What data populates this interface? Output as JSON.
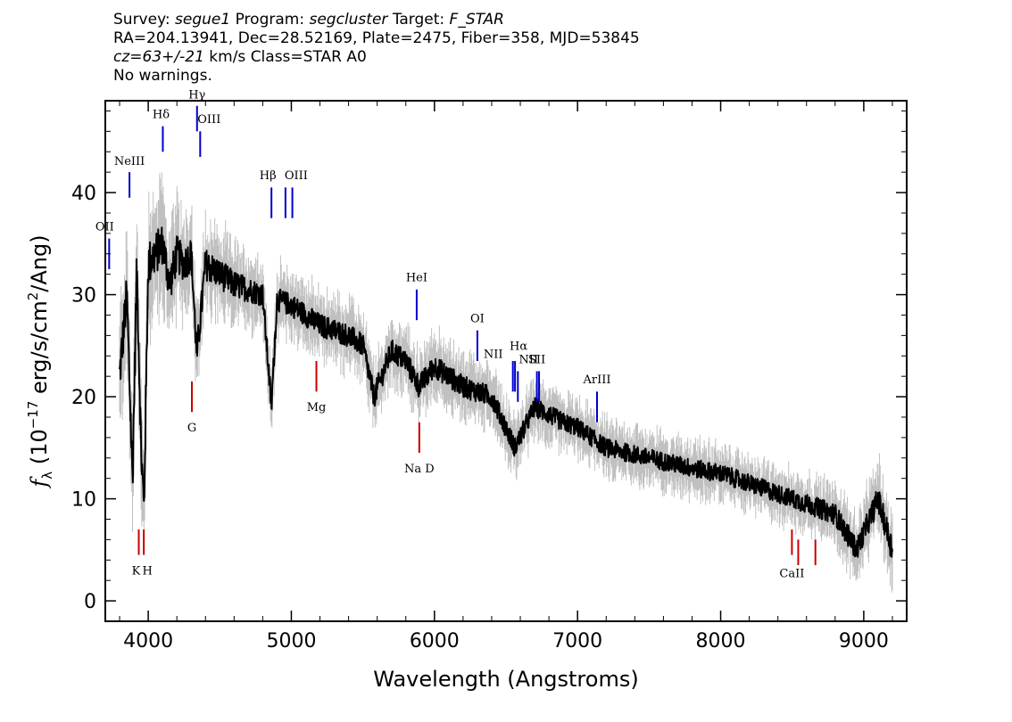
{
  "header": {
    "survey_label": "Survey:",
    "survey": "segue1",
    "program_label": "Program:",
    "program": "segcluster",
    "target_label": "Target:",
    "target": "F_STAR",
    "line2": "RA=204.13941, Dec=28.52169, Plate=2475, Fiber=358, MJD=53845",
    "cz": "cz=63+/-21",
    "cz_rest": " km/s Class=STAR A0",
    "line4": "No warnings."
  },
  "chart_data": {
    "type": "line",
    "title": "",
    "xlabel": "Wavelength (Angstroms)",
    "ylabel_main": "f",
    "ylabel_sub": "λ",
    "ylabel_rest": " (10",
    "ylabel_exp1": "−17",
    "ylabel_mid": " erg/s/cm",
    "ylabel_exp2": "2",
    "ylabel_end": "/Ang)",
    "xlim": [
      3700,
      9300
    ],
    "ylim": [
      -2,
      49
    ],
    "xticks": [
      4000,
      5000,
      6000,
      7000,
      8000,
      9000
    ],
    "xtick_labels": [
      "4000",
      "5000",
      "6000",
      "7000",
      "8000",
      "9000"
    ],
    "yticks": [
      0,
      10,
      20,
      30,
      40
    ],
    "ytick_labels": [
      "0",
      "10",
      "20",
      "30",
      "40"
    ],
    "grid": false,
    "series": [
      {
        "role": "flux",
        "color": "#000000",
        "x": [
          3800,
          3850,
          3890,
          3920,
          3950,
          3970,
          4000,
          4050,
          4100,
          4150,
          4200,
          4250,
          4300,
          4340,
          4400,
          4500,
          4600,
          4700,
          4800,
          4861,
          4900,
          5000,
          5100,
          5200,
          5300,
          5400,
          5500,
          5577,
          5700,
          5800,
          5893,
          6000,
          6200,
          6400,
          6563,
          6700,
          6900,
          7000,
          7200,
          7500,
          7800,
          8000,
          8200,
          8400,
          8600,
          8800,
          8950,
          9100,
          9200
        ],
        "y": [
          22,
          30,
          12,
          33,
          15,
          9,
          33,
          34,
          35,
          31,
          34,
          33,
          34,
          24,
          33,
          32,
          31,
          30.5,
          30,
          19,
          29.5,
          29,
          28,
          27,
          26.5,
          26,
          25,
          20,
          24.5,
          23.5,
          21,
          23,
          21,
          20,
          15,
          19,
          17.5,
          17,
          15,
          14,
          13,
          12.5,
          11.5,
          10.5,
          9.5,
          8.5,
          5,
          10,
          5
        ]
      },
      {
        "role": "error",
        "color": "#c0c0c0",
        "x": [
          3800,
          4000,
          4200,
          4400,
          4600,
          4800,
          5000,
          5200,
          5400,
          5600,
          5800,
          6000,
          6500,
          7000,
          7500,
          8000,
          8500,
          9000,
          9200
        ],
        "y": [
          5,
          5,
          4,
          3.5,
          3,
          2.5,
          2.5,
          2.5,
          2.5,
          2.5,
          2.5,
          2.5,
          2.2,
          2,
          2,
          2,
          2,
          2.5,
          3
        ]
      }
    ],
    "emission_lines": [
      {
        "label": "OII",
        "x": 3727,
        "y_bottom": 32.5,
        "y_top": 35.5,
        "label_y": 36.3,
        "label_dx": -5,
        "color": "#0000cc"
      },
      {
        "label": "NeIII",
        "x": 3869,
        "y_bottom": 39.5,
        "y_top": 42,
        "label_y": 42.7,
        "label_dx": 0,
        "color": "#0000cc"
      },
      {
        "label": "Hδ",
        "x": 4102,
        "y_bottom": 44,
        "y_top": 46.5,
        "label_y": 47.3,
        "label_dx": -2,
        "color": "#0000cc"
      },
      {
        "label": "Hγ",
        "x": 4341,
        "y_bottom": 46,
        "y_top": 48.5,
        "label_y": 49.2,
        "label_dx": 0,
        "color": "#0000cc"
      },
      {
        "label": "OIII",
        "x": 4363,
        "y_bottom": 43.5,
        "y_top": 46,
        "label_y": 46.8,
        "label_dx": 10,
        "color": "#0000cc"
      },
      {
        "label": "Hβ",
        "x": 4861,
        "y_bottom": 37.5,
        "y_top": 40.5,
        "label_y": 41.3,
        "label_dx": -4,
        "color": "#0000cc"
      },
      {
        "label": "OIII",
        "x": 4959,
        "y_bottom": 37.5,
        "y_top": 40.5,
        "label_y": 41.3,
        "label_dx": 12,
        "color": "#0000cc"
      },
      {
        "label": "",
        "x": 5007,
        "y_bottom": 37.5,
        "y_top": 40.5,
        "label_y": 41.3,
        "label_dx": 0,
        "color": "#0000cc"
      },
      {
        "label": "HeI",
        "x": 5876,
        "y_bottom": 27.5,
        "y_top": 30.5,
        "label_y": 31.3,
        "label_dx": 0,
        "color": "#0000cc"
      },
      {
        "label": "OI",
        "x": 6300,
        "y_bottom": 23.5,
        "y_top": 26.5,
        "label_y": 27.3,
        "label_dx": 0,
        "color": "#0000cc"
      },
      {
        "label": "NII",
        "x": 6548,
        "y_bottom": 20.5,
        "y_top": 23.5,
        "label_y": 23.8,
        "label_dx": -22,
        "color": "#0000cc"
      },
      {
        "label": "Hα",
        "x": 6563,
        "y_bottom": 20.5,
        "y_top": 23.5,
        "label_y": 24.6,
        "label_dx": 4,
        "color": "#0000cc"
      },
      {
        "label": "NII",
        "x": 6583,
        "y_bottom": 19.5,
        "y_top": 22.5,
        "label_y": 23.3,
        "label_dx": 12,
        "color": "#0000cc"
      },
      {
        "label": "SII",
        "x": 6716,
        "y_bottom": 19.5,
        "y_top": 22.5,
        "label_y": 23.3,
        "label_dx": 0,
        "color": "#0000cc"
      },
      {
        "label": "",
        "x": 6731,
        "y_bottom": 19.5,
        "y_top": 22.5,
        "label_y": 23.3,
        "label_dx": 0,
        "color": "#0000cc"
      },
      {
        "label": "ArIII",
        "x": 7136,
        "y_bottom": 17.5,
        "y_top": 20.5,
        "label_y": 21.3,
        "label_dx": 0,
        "color": "#0000cc"
      }
    ],
    "absorption_lines": [
      {
        "label": "K",
        "x": 3934,
        "y_top": 7,
        "y_bottom": 4.5,
        "label_y": 3.3,
        "label_dx": -3,
        "color": "#cc0000"
      },
      {
        "label": "H",
        "x": 3969,
        "y_top": 7,
        "y_bottom": 4.5,
        "label_y": 3.3,
        "label_dx": 4,
        "color": "#cc0000"
      },
      {
        "label": "G",
        "x": 4305,
        "y_top": 21.5,
        "y_bottom": 18.5,
        "label_y": 17.3,
        "label_dx": 0,
        "color": "#cc0000"
      },
      {
        "label": "Mg",
        "x": 5175,
        "y_top": 23.5,
        "y_bottom": 20.5,
        "label_y": 19.3,
        "label_dx": 0,
        "color": "#cc0000"
      },
      {
        "label": "Na D",
        "x": 5894,
        "y_top": 17.5,
        "y_bottom": 14.5,
        "label_y": 13.3,
        "label_dx": 0,
        "color": "#cc0000"
      },
      {
        "label": "CaII",
        "x": 8498,
        "y_top": 7,
        "y_bottom": 4.5,
        "label_y": 3.0,
        "label_dx": 0,
        "color": "#cc0000"
      },
      {
        "label": "",
        "x": 8542,
        "y_top": 6,
        "y_bottom": 3.5,
        "label_y": 3.0,
        "label_dx": 0,
        "color": "#cc0000"
      },
      {
        "label": "",
        "x": 8662,
        "y_top": 6,
        "y_bottom": 3.5,
        "label_y": 3.0,
        "label_dx": 0,
        "color": "#cc0000"
      }
    ]
  }
}
